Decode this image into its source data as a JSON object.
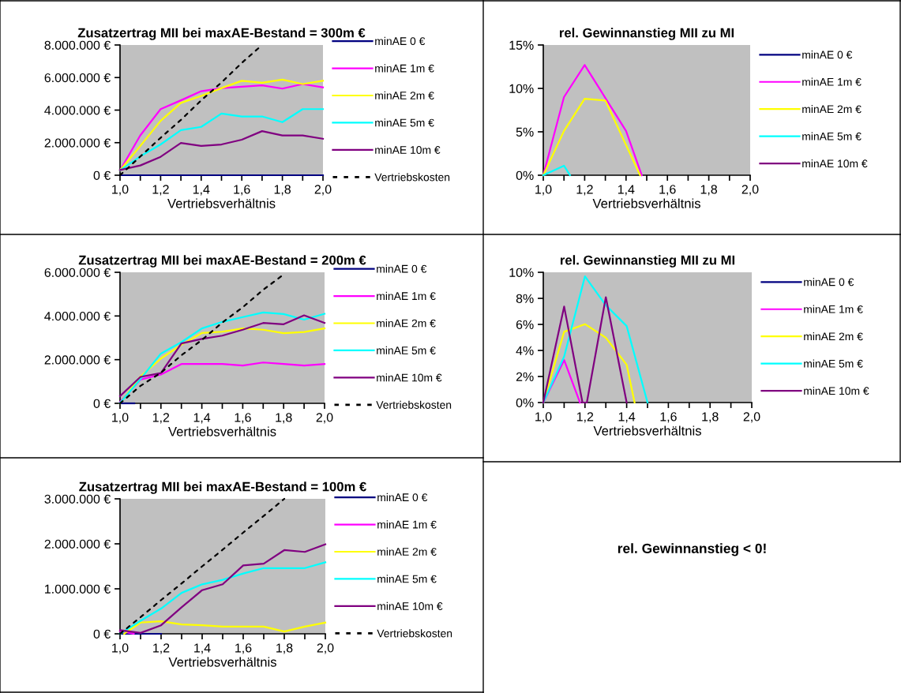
{
  "chart_data": [
    {
      "type": "line",
      "title": "Zusatzertrag MII bei maxAE-Bestand = 300m €",
      "xlabel": "Vertriebsverhältnis",
      "legend": "right",
      "x": [
        1.0,
        1.1,
        1.2,
        1.3,
        1.4,
        1.5,
        1.6,
        1.7,
        1.8,
        1.9,
        2.0
      ],
      "xlim": [
        1.0,
        2.0
      ],
      "xticks": [
        {
          "value": 1.0,
          "label": "1,0"
        },
        {
          "value": 1.1,
          "label": null
        },
        {
          "value": 1.2,
          "label": "1,2"
        },
        {
          "value": 1.3,
          "label": null
        },
        {
          "value": 1.4,
          "label": "1,4"
        },
        {
          "value": 1.5,
          "label": null
        },
        {
          "value": 1.6,
          "label": "1,6"
        },
        {
          "value": 1.7,
          "label": null
        },
        {
          "value": 1.8,
          "label": "1,8"
        },
        {
          "value": 1.9,
          "label": null
        },
        {
          "value": 2.0,
          "label": "2,0"
        }
      ],
      "ylim": [
        0,
        8000000
      ],
      "yticks": [
        {
          "value": 0,
          "label": "0 €"
        },
        {
          "value": 2000000,
          "label": "2.000.000 €"
        },
        {
          "value": 4000000,
          "label": "4.000.000 €"
        },
        {
          "value": 6000000,
          "label": "6.000.000 €"
        },
        {
          "value": 8000000,
          "label": "8.000.000 €"
        }
      ],
      "series": [
        {
          "name": "minAE 0 €",
          "color": "#000080",
          "values": [
            0,
            0,
            0,
            0,
            0,
            0,
            0,
            0,
            0,
            0,
            0
          ]
        },
        {
          "name": "minAE 1m €",
          "color": "#ff00ff",
          "values": [
            300000,
            2450000,
            4060000,
            4600000,
            5160000,
            5350000,
            5440000,
            5520000,
            5320000,
            5600000,
            5400000
          ]
        },
        {
          "name": "minAE 2m €",
          "color": "#ffff00",
          "values": [
            300000,
            1800000,
            3340000,
            4440000,
            4870000,
            5350000,
            5800000,
            5680000,
            5870000,
            5600000,
            5800000
          ]
        },
        {
          "name": "minAE 5m €",
          "color": "#00ffff",
          "values": [
            300000,
            1160000,
            1890000,
            2770000,
            2970000,
            3790000,
            3610000,
            3610000,
            3260000,
            4060000,
            4060000
          ]
        },
        {
          "name": "minAE 10m €",
          "color": "#800080",
          "values": [
            320000,
            600000,
            1130000,
            1980000,
            1800000,
            1890000,
            2180000,
            2710000,
            2440000,
            2440000,
            2240000
          ]
        },
        {
          "name": "Vertriebskosten",
          "color": "#000000",
          "line_style": "dotted",
          "values": [
            0,
            1150000,
            2300000,
            3400000,
            4600000,
            5700000,
            6900000,
            8000000,
            null,
            null,
            null
          ]
        }
      ]
    },
    {
      "type": "line",
      "title": "rel. Gewinnanstieg MII zu MI",
      "xlabel": "Vertriebsverhältnis",
      "legend": "right",
      "xlim": [
        1.0,
        2.0
      ],
      "xticks": [
        {
          "value": 1.0,
          "label": "1,0"
        },
        {
          "value": 1.1,
          "label": null
        },
        {
          "value": 1.2,
          "label": "1,2"
        },
        {
          "value": 1.3,
          "label": null
        },
        {
          "value": 1.4,
          "label": "1,4"
        },
        {
          "value": 1.5,
          "label": null
        },
        {
          "value": 1.6,
          "label": "1,6"
        },
        {
          "value": 1.7,
          "label": null
        },
        {
          "value": 1.8,
          "label": "1,8"
        },
        {
          "value": 1.9,
          "label": null
        },
        {
          "value": 2.0,
          "label": "2,0"
        }
      ],
      "ylim": [
        0,
        15
      ],
      "yticks": [
        {
          "value": 0,
          "label": "0%"
        },
        {
          "value": 5,
          "label": "5%"
        },
        {
          "value": 10,
          "label": "10%"
        },
        {
          "value": 15,
          "label": "15%"
        }
      ],
      "series": [
        {
          "name": "minAE 0 €",
          "color": "#000080"
        },
        {
          "name": "minAE 1m €",
          "color": "#ff00ff",
          "x": [
            1.0,
            1.1,
            1.2,
            1.3,
            1.4,
            1.476
          ],
          "values": [
            0,
            9.0,
            12.7,
            8.9,
            5.1,
            0
          ]
        },
        {
          "name": "minAE 2m €",
          "color": "#ffff00",
          "x": [
            1.0,
            1.1,
            1.2,
            1.3,
            1.468
          ],
          "values": [
            0,
            5.1,
            8.8,
            8.6,
            0
          ]
        },
        {
          "name": "minAE 5m €",
          "color": "#00ffff",
          "x": [
            1.0,
            1.1,
            1.129
          ],
          "values": [
            0,
            1.1,
            0
          ]
        },
        {
          "name": "minAE 10m €",
          "color": "#800080"
        }
      ]
    },
    {
      "type": "line",
      "title": "Zusatzertrag MII bei maxAE-Bestand = 200m €",
      "xlabel": "Vertriebsverhältnis",
      "legend": "right",
      "x": [
        1.0,
        1.1,
        1.2,
        1.3,
        1.4,
        1.5,
        1.6,
        1.7,
        1.8,
        1.9,
        2.0
      ],
      "xlim": [
        1.0,
        2.0
      ],
      "xticks": [
        {
          "value": 1.0,
          "label": "1,0"
        },
        {
          "value": 1.1,
          "label": null
        },
        {
          "value": 1.2,
          "label": "1,2"
        },
        {
          "value": 1.3,
          "label": null
        },
        {
          "value": 1.4,
          "label": "1,4"
        },
        {
          "value": 1.5,
          "label": null
        },
        {
          "value": 1.6,
          "label": "1,6"
        },
        {
          "value": 1.7,
          "label": null
        },
        {
          "value": 1.8,
          "label": "1,8"
        },
        {
          "value": 1.9,
          "label": null
        },
        {
          "value": 2.0,
          "label": "2,0"
        }
      ],
      "ylim": [
        0,
        6000000
      ],
      "yticks": [
        {
          "value": 0,
          "label": "0 €"
        },
        {
          "value": 2000000,
          "label": "2.000.000 €"
        },
        {
          "value": 4000000,
          "label": "4.000.000 €"
        },
        {
          "value": 6000000,
          "label": "6.000.000 €"
        }
      ],
      "series": [
        {
          "name": "minAE 0 €",
          "color": "#000080",
          "x": [
            1.0,
            1.07
          ],
          "values": [
            0,
            0
          ]
        },
        {
          "name": "minAE 1m €",
          "color": "#ff00ff",
          "values": [
            60000,
            1090000,
            1320000,
            1800000,
            1800000,
            1800000,
            1730000,
            1870000,
            1800000,
            1730000,
            1800000
          ]
        },
        {
          "name": "minAE 2m €",
          "color": "#ffff00",
          "values": [
            0,
            1230000,
            2050000,
            2680000,
            3220000,
            3280000,
            3430000,
            3370000,
            3210000,
            3270000,
            3430000
          ]
        },
        {
          "name": "minAE 5m €",
          "color": "#00ffff",
          "values": [
            20000,
            1110000,
            2280000,
            2800000,
            3430000,
            3730000,
            3950000,
            4160000,
            4090000,
            3830000,
            4100000
          ]
        },
        {
          "name": "minAE 10m €",
          "color": "#800080",
          "values": [
            330000,
            1210000,
            1390000,
            2740000,
            2950000,
            3100000,
            3370000,
            3680000,
            3620000,
            4030000,
            3680000
          ]
        },
        {
          "name": "Vertriebskosten",
          "color": "#000000",
          "line_style": "dotted",
          "values": [
            0,
            800000,
            1400000,
            2200000,
            2900000,
            3700000,
            4400000,
            5200000,
            5900000,
            null,
            null
          ]
        }
      ]
    },
    {
      "type": "line",
      "title": "rel. Gewinnanstieg MII zu MI",
      "xlabel": "Vertriebsverhältnis",
      "legend": "right",
      "xlim": [
        1.0,
        2.0
      ],
      "xticks": [
        {
          "value": 1.0,
          "label": "1,0"
        },
        {
          "value": 1.1,
          "label": null
        },
        {
          "value": 1.2,
          "label": "1,2"
        },
        {
          "value": 1.3,
          "label": null
        },
        {
          "value": 1.4,
          "label": "1,4"
        },
        {
          "value": 1.5,
          "label": null
        },
        {
          "value": 1.6,
          "label": "1,6"
        },
        {
          "value": 1.7,
          "label": null
        },
        {
          "value": 1.8,
          "label": "1,8"
        },
        {
          "value": 1.9,
          "label": null
        },
        {
          "value": 2.0,
          "label": "2,0"
        }
      ],
      "ylim": [
        0,
        10
      ],
      "yticks": [
        {
          "value": 0,
          "label": "0%"
        },
        {
          "value": 2,
          "label": "2%"
        },
        {
          "value": 4,
          "label": "4%"
        },
        {
          "value": 6,
          "label": "6%"
        },
        {
          "value": 8,
          "label": "8%"
        },
        {
          "value": 10,
          "label": "10%"
        }
      ],
      "series": [
        {
          "name": "minAE 0 €",
          "color": "#000080"
        },
        {
          "name": "minAE 1m €",
          "color": "#ff00ff",
          "x": [
            1.0,
            1.1,
            1.176
          ],
          "values": [
            0,
            3.26,
            0
          ]
        },
        {
          "name": "minAE 2m €",
          "color": "#ffff00",
          "x": [
            1.0,
            1.1,
            1.2,
            1.3,
            1.4,
            1.438
          ],
          "values": [
            0,
            5.43,
            6.02,
            4.98,
            2.9,
            0
          ]
        },
        {
          "name": "minAE 5m €",
          "color": "#00ffff",
          "x": [
            1.0,
            1.1,
            1.2,
            1.3,
            1.4,
            1.5
          ],
          "values": [
            0,
            3.53,
            9.69,
            7.47,
            5.87,
            0
          ]
        },
        {
          "name": "minAE 10m €",
          "color": "#800080",
          "x": [
            1.0,
            1.1,
            1.188,
            1.209,
            1.3,
            1.4
          ],
          "values": [
            0,
            7.37,
            0,
            0,
            8.09,
            0
          ]
        }
      ]
    },
    {
      "type": "line",
      "title": "Zusatzertrag MII bei maxAE-Bestand = 100m €",
      "xlabel": "Vertriebsverhältnis",
      "legend": "right",
      "x": [
        1.0,
        1.1,
        1.2,
        1.3,
        1.4,
        1.5,
        1.6,
        1.7,
        1.8,
        1.9,
        2.0
      ],
      "xlim": [
        1.0,
        2.0
      ],
      "xticks": [
        {
          "value": 1.0,
          "label": "1,0"
        },
        {
          "value": 1.1,
          "label": null
        },
        {
          "value": 1.2,
          "label": "1,2"
        },
        {
          "value": 1.3,
          "label": null
        },
        {
          "value": 1.4,
          "label": "1,4"
        },
        {
          "value": 1.5,
          "label": null
        },
        {
          "value": 1.6,
          "label": "1,6"
        },
        {
          "value": 1.7,
          "label": null
        },
        {
          "value": 1.8,
          "label": "1,8"
        },
        {
          "value": 1.9,
          "label": null
        },
        {
          "value": 2.0,
          "label": "2,0"
        }
      ],
      "ylim": [
        0,
        3000000
      ],
      "yticks": [
        {
          "value": 0,
          "label": "0 €"
        },
        {
          "value": 1000000,
          "label": "1.000.000 €"
        },
        {
          "value": 2000000,
          "label": "2.000.000 €"
        },
        {
          "value": 3000000,
          "label": "3.000.000 €"
        }
      ],
      "series": [
        {
          "name": "minAE 0 €",
          "color": "#000080",
          "x": [
            1.0,
            1.1,
            1.2
          ],
          "values": [
            0,
            0,
            0
          ]
        },
        {
          "name": "minAE 1m €",
          "color": "#ff00ff",
          "x": [
            1.0,
            1.067
          ],
          "values": [
            60000,
            0
          ]
        },
        {
          "name": "minAE 2m €",
          "color": "#ffff00",
          "x": [
            1.02,
            1.1,
            1.2,
            1.3,
            1.4,
            1.5,
            1.6,
            1.7,
            1.8,
            1.9,
            2.0
          ],
          "values": [
            0,
            250000,
            280000,
            210000,
            190000,
            160000,
            160000,
            160000,
            50000,
            160000,
            250000
          ]
        },
        {
          "name": "minAE 5m €",
          "color": "#00ffff",
          "values": [
            0,
            290000,
            560000,
            910000,
            1100000,
            1200000,
            1340000,
            1460000,
            1460000,
            1460000,
            1590000
          ]
        },
        {
          "name": "minAE 10m €",
          "color": "#800080",
          "values": [
            80000,
            20000,
            190000,
            590000,
            970000,
            1100000,
            1520000,
            1560000,
            1860000,
            1820000,
            1990000
          ]
        },
        {
          "name": "Vertriebskosten",
          "color": "#000000",
          "line_style": "dotted",
          "values": [
            0,
            370000,
            750000,
            1120000,
            1500000,
            1870000,
            2250000,
            2620000,
            3000000,
            null,
            null
          ]
        }
      ]
    },
    {
      "type": "other",
      "annotations": [
        "rel. Gewinnanstieg < 0!"
      ]
    }
  ]
}
